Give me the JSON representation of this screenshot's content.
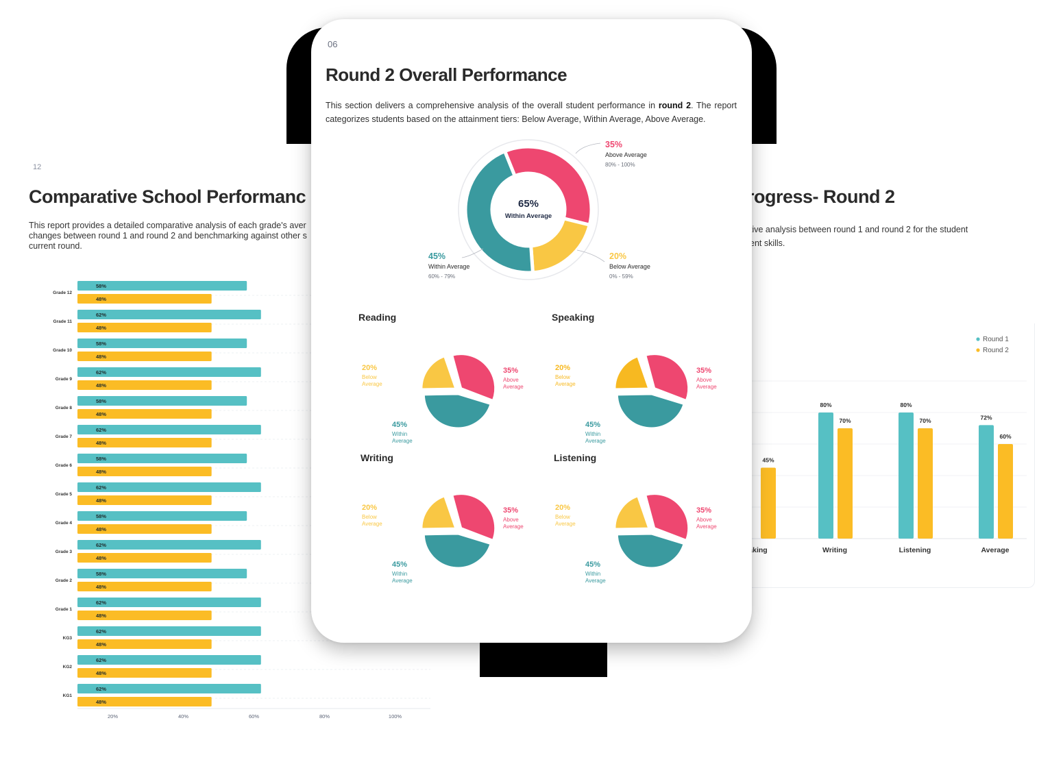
{
  "colors": {
    "teal": "#3a9a9f",
    "teal_light": "#56c0c4",
    "pink": "#ee4770",
    "yellow": "#f9c744",
    "gold": "#fbbc25"
  },
  "left_page": {
    "page_number": "12",
    "title": "Comparative School Performanc",
    "description_lines": [
      "This report provides a detailed comparative analysis of each grade's aver",
      "changes between round 1 and round 2 and benchmarking against other s",
      "current round."
    ]
  },
  "right_page": {
    "title": "rogress- Round 2",
    "description_lines": [
      "tive analysis between round 1 and round 2 for the student",
      "ent skills."
    ]
  },
  "tablet": {
    "page_number": "06",
    "title": "Round 2 Overall Performance",
    "description_before": "This section delivers a comprehensive analysis of the overall student performance in ",
    "description_bold": "round 2",
    "description_after": ". The report categorizes students based on the attainment tiers: Below Average, Within Average, Above Average."
  },
  "chart_data": [
    {
      "id": "grade-comparison",
      "type": "bar",
      "orientation": "horizontal",
      "categories": [
        "Grade 12",
        "Grade 11",
        "Grade 10",
        "Grade 9",
        "Grade 8",
        "Grade 7",
        "Grade 6",
        "Grade 5",
        "Grade 4",
        "Grade 3",
        "Grade 2",
        "Grade 1",
        "KG3",
        "KG2",
        "KG1"
      ],
      "series": [
        {
          "values": [
            58,
            62,
            58,
            62,
            58,
            62,
            58,
            62,
            58,
            62,
            58,
            62,
            62,
            62,
            62
          ],
          "labels": [
            "58%",
            "62%",
            "58%",
            "62%",
            "58%",
            "62%",
            "58%",
            "62%",
            "58%",
            "62%",
            "58%",
            "62%",
            "62%",
            "62%",
            "62%"
          ],
          "color": "#56c0c4"
        },
        {
          "values": [
            48,
            48,
            48,
            48,
            48,
            48,
            48,
            48,
            48,
            48,
            48,
            48,
            48,
            48,
            48
          ],
          "labels": [
            "48%",
            "48%",
            "48%",
            "48%",
            "48%",
            "48%",
            "48%",
            "48%",
            "48%",
            "48%",
            "48%",
            "48%",
            "48%",
            "48%",
            "48%"
          ],
          "color": "#fbbc25"
        }
      ],
      "xticks": [
        "20%",
        "40%",
        "60%",
        "80%",
        "100%"
      ],
      "xlim": [
        10,
        110
      ]
    },
    {
      "id": "overall-donut",
      "type": "pie",
      "style": "donut",
      "center_value": "65%",
      "center_label": "Within Average",
      "slices": [
        {
          "label": "Above Average",
          "value": 35,
          "display": "35%",
          "range": "80% - 100%",
          "color": "#ee4770"
        },
        {
          "label": "Below Average",
          "value": 20,
          "display": "20%",
          "range": "0% - 59%",
          "color": "#f9c744"
        },
        {
          "label": "Within Average",
          "value": 45,
          "display": "45%",
          "range": "60% - 79%",
          "color": "#3a9a9f"
        }
      ]
    },
    {
      "id": "reading",
      "type": "pie",
      "title": "Reading",
      "slices": [
        {
          "label_lines": [
            "Above",
            "Average"
          ],
          "value": 35,
          "display": "35%",
          "color": "#ee4770"
        },
        {
          "label_lines": [
            "Within",
            "Average"
          ],
          "value": 45,
          "display": "45%",
          "color": "#3a9a9f"
        },
        {
          "label_lines": [
            "Below",
            "Average"
          ],
          "value": 20,
          "display": "20%",
          "color": "#f9c744"
        }
      ]
    },
    {
      "id": "speaking",
      "type": "pie",
      "title": "Speaking",
      "slices": [
        {
          "label_lines": [
            "Above",
            "Average"
          ],
          "value": 35,
          "display": "35%",
          "color": "#ee4770"
        },
        {
          "label_lines": [
            "Within",
            "Average"
          ],
          "value": 45,
          "display": "45%",
          "color": "#3a9a9f"
        },
        {
          "label_lines": [
            "Below",
            "Average"
          ],
          "value": 20,
          "display": "20%",
          "color": "#f7b921"
        }
      ]
    },
    {
      "id": "writing",
      "type": "pie",
      "title": "Writing",
      "slices": [
        {
          "label_lines": [
            "Above",
            "Average"
          ],
          "value": 35,
          "display": "35%",
          "color": "#ee4770"
        },
        {
          "label_lines": [
            "Within",
            "Average"
          ],
          "value": 45,
          "display": "45%",
          "color": "#3a9a9f"
        },
        {
          "label_lines": [
            "Below",
            "Average"
          ],
          "value": 20,
          "display": "20%",
          "color": "#f9c744"
        }
      ]
    },
    {
      "id": "listening",
      "type": "pie",
      "title": "Listening",
      "slices": [
        {
          "label_lines": [
            "Above",
            "Average"
          ],
          "value": 35,
          "display": "35%",
          "color": "#ee4770"
        },
        {
          "label_lines": [
            "Within",
            "Average"
          ],
          "value": 45,
          "display": "45%",
          "color": "#3a9a9f"
        },
        {
          "label_lines": [
            "Below",
            "Average"
          ],
          "value": 20,
          "display": "20%",
          "color": "#f9c744"
        }
      ]
    },
    {
      "id": "skills-progress",
      "type": "bar",
      "orientation": "vertical",
      "categories": [
        "aking",
        "Writing",
        "Listening",
        "Average"
      ],
      "series": [
        {
          "name": "Round 1",
          "values": [
            null,
            80,
            80,
            72
          ],
          "labels": [
            "",
            "80%",
            "80%",
            "72%"
          ],
          "color": "#56c0c4"
        },
        {
          "name": "Round 2",
          "values": [
            45,
            70,
            70,
            60
          ],
          "labels": [
            "45%",
            "70%",
            "70%",
            "60%"
          ],
          "color": "#fbbc25"
        }
      ],
      "ylim": [
        0,
        100
      ],
      "legend": "top-right"
    }
  ]
}
